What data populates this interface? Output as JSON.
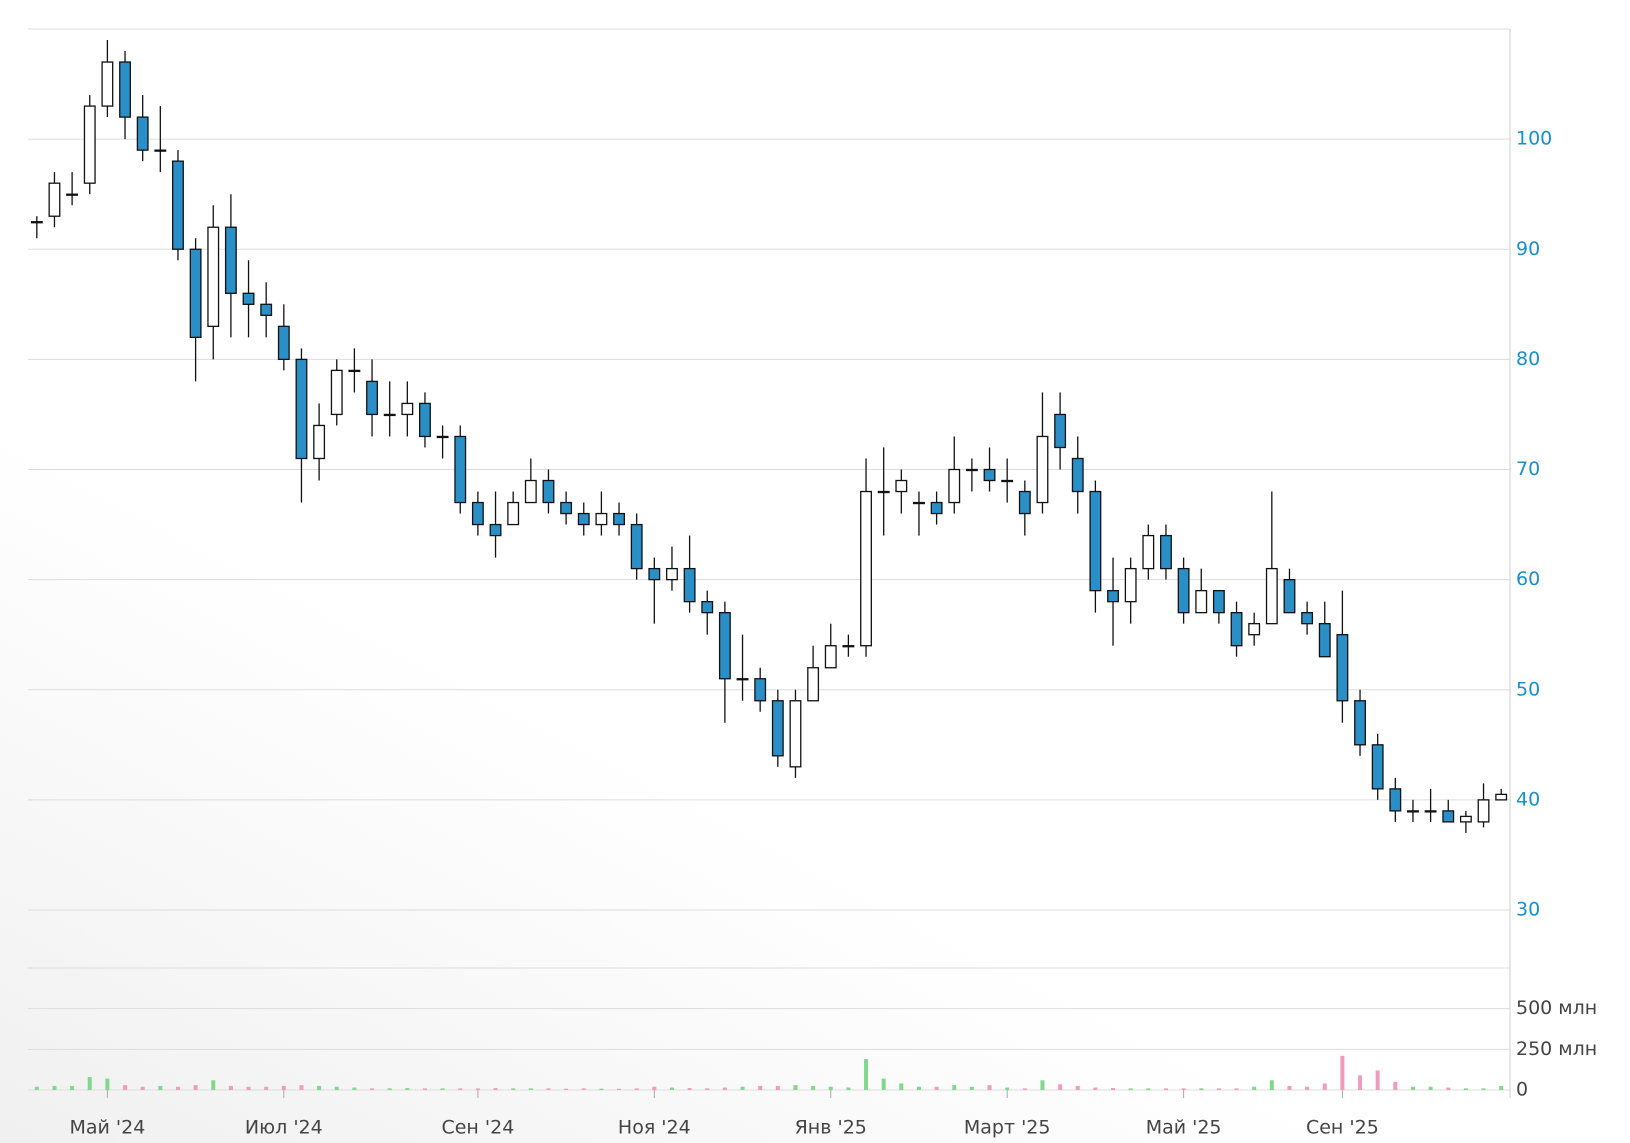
{
  "chart_data": {
    "type": "candlestick",
    "categories": [
      null,
      null,
      null,
      null,
      "Май '24",
      null,
      null,
      null,
      null,
      null,
      null,
      null,
      null,
      null,
      "Июл '24",
      null,
      null,
      null,
      null,
      null,
      null,
      null,
      null,
      null,
      null,
      "Сен '24",
      null,
      null,
      null,
      null,
      null,
      null,
      null,
      null,
      null,
      "Ноя '24",
      null,
      null,
      null,
      null,
      null,
      null,
      null,
      null,
      null,
      "Янв '25",
      null,
      null,
      null,
      null,
      null,
      null,
      null,
      null,
      null,
      "Март '25",
      null,
      null,
      null,
      null,
      null,
      null,
      null,
      null,
      null,
      "Май '25",
      null,
      null,
      null,
      null,
      null,
      null,
      null,
      null,
      "Сен '25",
      null,
      null,
      null,
      null,
      null,
      null,
      null,
      null,
      null
    ],
    "open": [
      92.5,
      93,
      95,
      96,
      103,
      107,
      102,
      99,
      98,
      90,
      83,
      92,
      86,
      85,
      83,
      80,
      71,
      75,
      79,
      78,
      75,
      75,
      76,
      73,
      73,
      67,
      65,
      65,
      67,
      69,
      67,
      66,
      65,
      66,
      65,
      61,
      60,
      61,
      58,
      57,
      51,
      51,
      49,
      43,
      49,
      52,
      54,
      54,
      68,
      68,
      67,
      67,
      67,
      70,
      70,
      69,
      68,
      67,
      75,
      71,
      68,
      59,
      58,
      61,
      64,
      61,
      57,
      59,
      57,
      55,
      56,
      60,
      57,
      56,
      55,
      49,
      45,
      41,
      39,
      39,
      39,
      38,
      38,
      40
    ],
    "high": [
      93,
      97,
      97,
      104,
      109,
      108,
      104,
      103,
      99,
      91,
      94,
      95,
      89,
      87,
      85,
      81,
      76,
      80,
      81,
      80,
      78,
      78,
      77,
      74,
      74,
      68,
      68,
      68,
      71,
      70,
      68,
      67,
      68,
      67,
      66,
      62,
      63,
      64,
      59,
      58,
      55,
      52,
      50,
      50,
      54,
      56,
      55,
      71,
      72,
      70,
      68,
      68,
      73,
      71,
      72,
      71,
      69,
      77,
      77,
      73,
      69,
      62,
      62,
      65,
      65,
      62,
      61,
      59,
      58,
      57,
      68,
      61,
      58,
      58,
      59,
      50,
      46,
      42,
      40,
      41,
      40,
      39,
      41.5,
      41
    ],
    "low": [
      91,
      92,
      94,
      95,
      102,
      100,
      98,
      97,
      89,
      78,
      80,
      82,
      82,
      82,
      79,
      67,
      69,
      74,
      77,
      73,
      73,
      73,
      72,
      71,
      66,
      64,
      62,
      65,
      67,
      66,
      65,
      64,
      64,
      64,
      60,
      56,
      59,
      57,
      55,
      47,
      49,
      48,
      43,
      42,
      49,
      52,
      53,
      53,
      64,
      66,
      64,
      65,
      66,
      68,
      68,
      67,
      64,
      66,
      70,
      66,
      57,
      54,
      56,
      60,
      60,
      56,
      57,
      56,
      53,
      54,
      56,
      57,
      55,
      53,
      47,
      44,
      40,
      38,
      38,
      38,
      38,
      37,
      37.5,
      40
    ],
    "close": [
      92.5,
      96,
      95,
      103,
      107,
      102,
      99,
      99,
      90,
      82,
      92,
      86,
      85,
      84,
      80,
      71,
      74,
      79,
      79,
      75,
      75,
      76,
      73,
      73,
      67,
      65,
      64,
      67,
      69,
      67,
      66,
      65,
      66,
      65,
      61,
      60,
      61,
      58,
      57,
      51,
      51,
      49,
      44,
      49,
      52,
      54,
      54,
      68,
      68,
      69,
      67,
      66,
      70,
      70,
      69,
      69,
      66,
      73,
      72,
      68,
      59,
      58,
      61,
      64,
      61,
      57,
      59,
      57,
      54,
      56,
      61,
      57,
      56,
      53,
      49,
      45,
      41,
      39,
      39,
      39,
      38,
      38.5,
      40,
      40.5
    ],
    "up_color": "#ffffff",
    "down_color": "#2a8fc7",
    "ylim": [
      30,
      110
    ],
    "yticks": [
      30,
      40,
      50,
      60,
      70,
      80,
      90,
      100
    ],
    "grid": true,
    "volume": {
      "values": [
        20,
        25,
        25,
        80,
        70,
        30,
        20,
        25,
        20,
        30,
        60,
        25,
        20,
        20,
        25,
        30,
        25,
        20,
        15,
        10,
        10,
        12,
        10,
        10,
        10,
        10,
        12,
        10,
        10,
        10,
        8,
        10,
        8,
        8,
        10,
        20,
        15,
        12,
        10,
        15,
        20,
        25,
        25,
        30,
        25,
        20,
        15,
        190,
        70,
        40,
        20,
        20,
        30,
        20,
        30,
        15,
        10,
        60,
        35,
        25,
        15,
        12,
        10,
        10,
        10,
        10,
        10,
        10,
        10,
        20,
        60,
        25,
        20,
        40,
        210,
        90,
        120,
        50,
        20,
        20,
        15,
        10,
        10,
        25
      ],
      "up_color": "#7ed98a",
      "down_color": "#f29bbd",
      "ylim": [
        0,
        750
      ],
      "yticks": [
        0,
        {
          "value": 250,
          "label": "250 млн"
        },
        {
          "value": 500,
          "label": "500 млн"
        }
      ]
    }
  }
}
